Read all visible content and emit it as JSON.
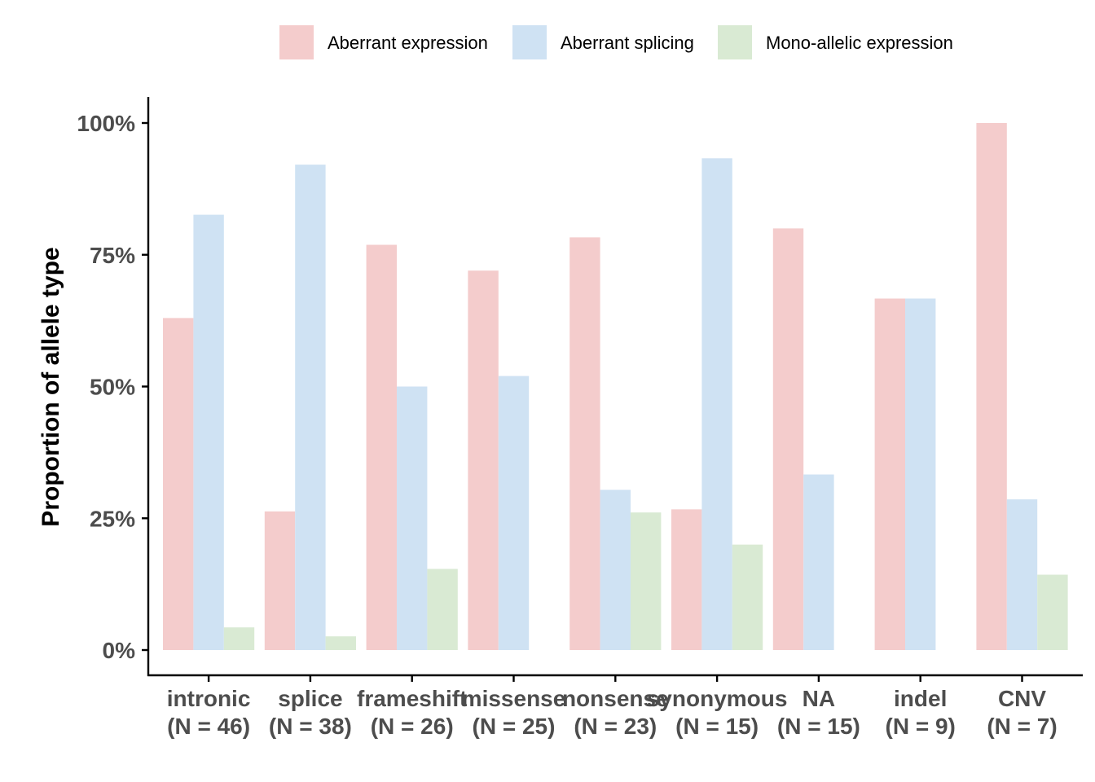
{
  "chart_data": {
    "type": "bar",
    "title": "",
    "xlabel": "",
    "ylabel": "Proportion of allele type",
    "ylim": [
      0,
      100
    ],
    "y_ticks": [
      "0%",
      "25%",
      "50%",
      "75%",
      "100%"
    ],
    "y_tick_values": [
      0,
      25,
      50,
      75,
      100
    ],
    "grid": false,
    "legend_position": "top",
    "categories": [
      [
        "intronic",
        "(N = 46)"
      ],
      [
        "splice",
        "(N = 38)"
      ],
      [
        "frameshift",
        "(N = 26)"
      ],
      [
        "missense",
        "(N = 25)"
      ],
      [
        "nonsense",
        "(N = 23)"
      ],
      [
        "synonymous",
        "(N = 15)"
      ],
      [
        "NA",
        "(N = 15)"
      ],
      [
        "indel",
        "(N = 9)"
      ],
      [
        "CNV",
        "(N = 7)"
      ]
    ],
    "series": [
      {
        "name": "Aberrant expression",
        "color": "#f4cccc",
        "values": [
          63.0,
          26.3,
          76.9,
          72.0,
          78.3,
          26.7,
          80.0,
          66.7,
          100.0
        ]
      },
      {
        "name": "Aberrant splicing",
        "color": "#cfe2f3",
        "values": [
          82.6,
          92.1,
          50.0,
          52.0,
          30.4,
          93.3,
          33.3,
          66.7,
          28.6
        ]
      },
      {
        "name": "Mono-allelic expression",
        "color": "#d9ead3",
        "values": [
          4.3,
          2.6,
          15.4,
          0,
          26.1,
          20.0,
          0,
          0,
          14.3
        ]
      }
    ]
  }
}
